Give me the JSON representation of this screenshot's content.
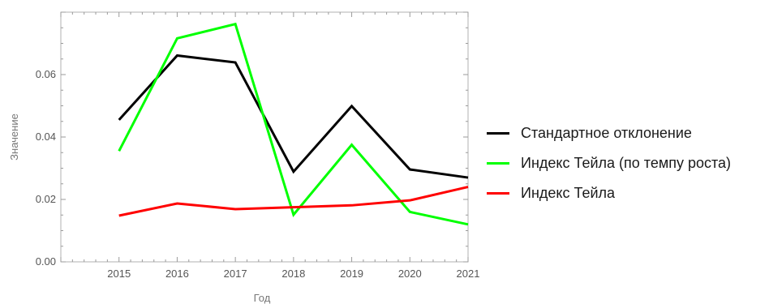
{
  "chart_data": {
    "type": "line",
    "xlabel": "Год",
    "ylabel": "Значение",
    "x": [
      2015,
      2016,
      2017,
      2018,
      2019,
      2020,
      2021
    ],
    "xlim": [
      2014,
      2021
    ],
    "ylim": [
      0,
      0.08
    ],
    "xticks": [
      "2015",
      "2016",
      "2017",
      "2018",
      "2019",
      "2020",
      "2021"
    ],
    "yticks": [
      "0.00",
      "0.02",
      "0.04",
      "0.06"
    ],
    "legend_position": "right",
    "series": [
      {
        "name": "Стандартное отклонение",
        "color": "#000000",
        "values": [
          0.0455,
          0.0661,
          0.0639,
          0.0289,
          0.0499,
          0.0296,
          0.027
        ]
      },
      {
        "name": "Индекс Тейла (по темпу роста)",
        "color": "#00ff00",
        "values": [
          0.0355,
          0.0716,
          0.0762,
          0.0151,
          0.0375,
          0.016,
          0.012
        ]
      },
      {
        "name": "Индекс Тейла",
        "color": "#ff0000",
        "values": [
          0.0148,
          0.0187,
          0.0169,
          0.0175,
          0.0181,
          0.0197,
          0.024
        ]
      }
    ]
  }
}
